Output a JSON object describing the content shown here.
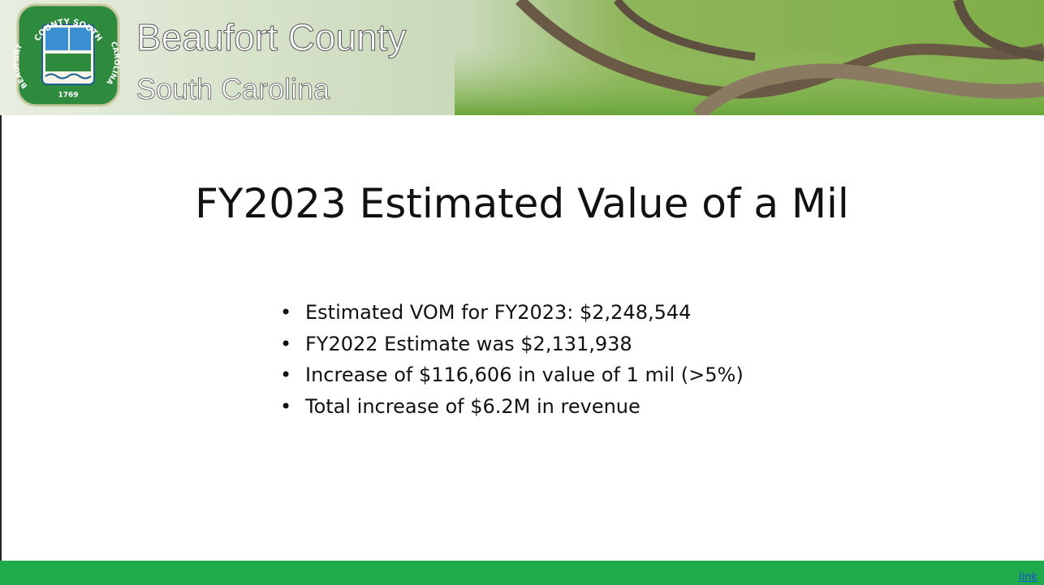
{
  "header": {
    "seal": {
      "top": "COUNTY SOUTH",
      "left": "BEAUFORT",
      "right": "CAROLINA",
      "year": "1769"
    },
    "title": "Beaufort County",
    "subtitle": "South Carolina"
  },
  "slide": {
    "title": "FY2023 Estimated Value of a Mil",
    "bullets": [
      "Estimated VOM for FY2023: $2,248,544",
      "FY2022 Estimate was $2,131,938",
      "Increase of $116,606 in value of 1 mil (>5%)",
      "Total increase of $6.2M in revenue"
    ]
  },
  "footer": {
    "link": "link"
  }
}
